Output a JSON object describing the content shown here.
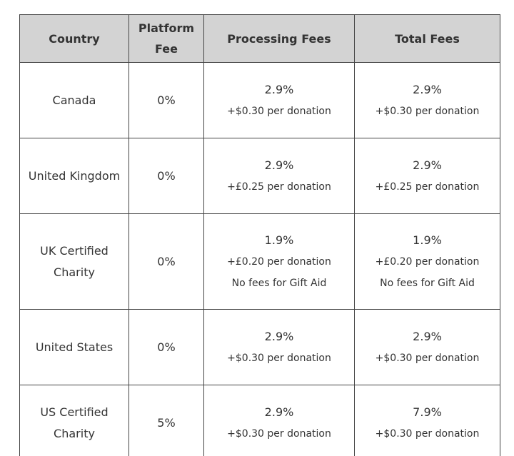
{
  "table": {
    "header": [
      "Country",
      "Platform Fee",
      "Processing Fees",
      "Total Fees"
    ],
    "rows": [
      [
        "Canada",
        "0%",
        [
          "2.9%",
          "+$0.30 per donation"
        ],
        [
          "2.9%",
          "+$0.30 per donation"
        ]
      ],
      [
        "United Kingdom",
        "0%",
        [
          "2.9%",
          "+£0.25 per donation"
        ],
        [
          "2.9%",
          "+£0.25 per donation"
        ]
      ],
      [
        "UK Certified Charity",
        "0%",
        [
          "1.9%",
          "+£0.20 per donation",
          "No fees for Gift Aid"
        ],
        [
          "1.9%",
          "+£0.20 per donation",
          "No fees for Gift Aid"
        ]
      ],
      [
        "United States",
        "0%",
        [
          "2.9%",
          "+$0.30 per donation"
        ],
        [
          "2.9%",
          "+$0.30 per donation"
        ]
      ],
      [
        "US Certified Charity",
        "5%",
        [
          "2.9%",
          "+$0.30 per donation"
        ],
        [
          "7.9%",
          "+$0.30 per donation"
        ]
      ]
    ]
  }
}
